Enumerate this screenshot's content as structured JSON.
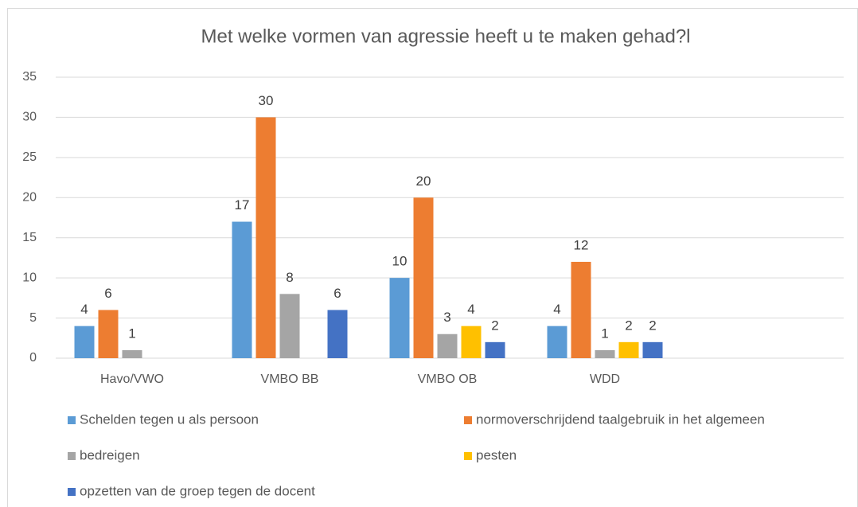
{
  "chart_data": {
    "type": "bar",
    "title": "Met welke vormen van agressie heeft u te maken gehad?l",
    "categories": [
      "Havo/VWO",
      "VMBO BB",
      "VMBO OB",
      "WDD",
      null
    ],
    "series": [
      {
        "name": "Schelden tegen u als persoon",
        "color": "#5b9bd5",
        "values": [
          4,
          17,
          10,
          4,
          null
        ]
      },
      {
        "name": "normoverschrijdend taalgebruik in het algemeen",
        "color": "#ed7d31",
        "values": [
          6,
          30,
          20,
          12,
          null
        ]
      },
      {
        "name": "bedreigen",
        "color": "#a5a5a5",
        "values": [
          1,
          8,
          3,
          1,
          null
        ]
      },
      {
        "name": "pesten",
        "color": "#ffc000",
        "values": [
          null,
          null,
          4,
          2,
          null
        ]
      },
      {
        "name": "opzetten van de groep tegen de docent",
        "color": "#4472c4",
        "values": [
          null,
          6,
          2,
          2,
          null
        ]
      }
    ],
    "ylim": [
      0,
      35
    ],
    "yticks": [
      0,
      5,
      10,
      15,
      20,
      25,
      30,
      35
    ],
    "grid": true,
    "legend": "bottom"
  }
}
